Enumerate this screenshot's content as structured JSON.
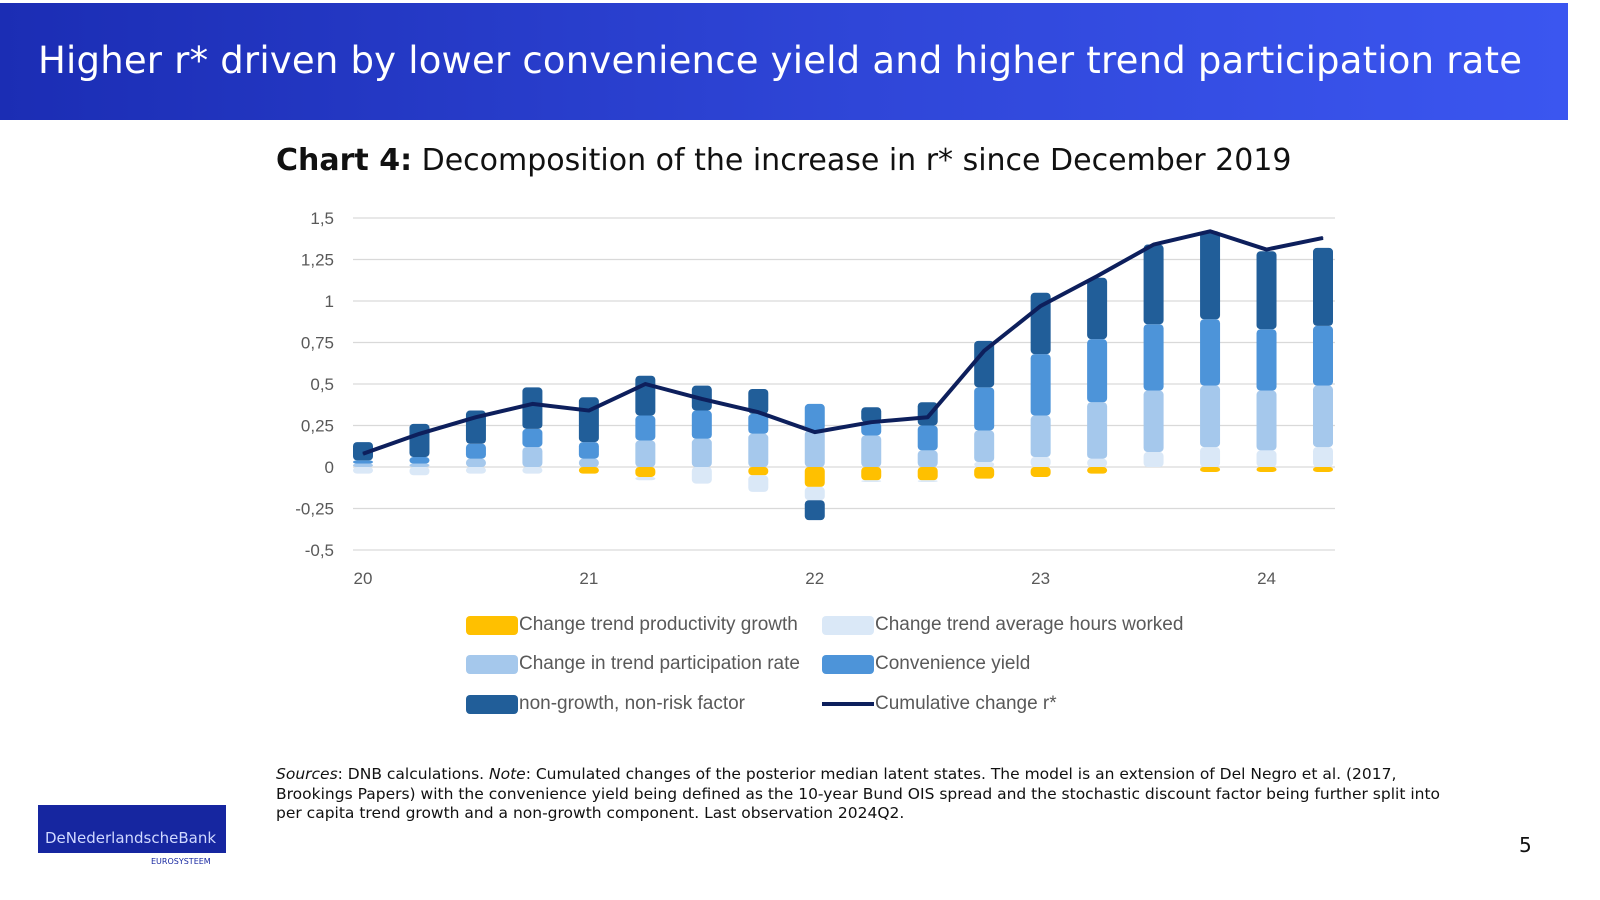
{
  "slide": {
    "title": "Higher r* driven by lower convenience yield and higher trend participation rate",
    "chart_label": "Chart 4:",
    "chart_title": "Decomposition of the increase in r* since December 2019",
    "note_sources_label": "Sources",
    "note_sources_text": ": DNB calculations. ",
    "note_note_label": "Note",
    "note_text": ": Cumulated changes of the posterior median latent states. The model is an extension of Del Negro et al. (2017, Brookings Papers) with the convenience yield being defined as the 10-year Bund OIS spread and the stochastic discount factor being further split into per capita trend growth and a non-growth component. Last observation 2024Q2.",
    "logo_text": "DeNederlandscheBank",
    "logo_subtext": "EUROSYSTEEM",
    "page_number": "5"
  },
  "chart_data": {
    "type": "bar",
    "stacked": true,
    "title": "Decomposition of the increase in r* since December 2019",
    "xlabel": "",
    "ylabel": "",
    "ylim": [
      -0.5,
      1.5
    ],
    "yticks": [
      -0.5,
      -0.25,
      0,
      0.25,
      0.5,
      0.75,
      1,
      1.25,
      1.5
    ],
    "ytick_labels": [
      "-0,5",
      "-0,25",
      "0",
      "0,25",
      "0,5",
      "0,75",
      "1",
      "1,25",
      "1,5"
    ],
    "xtick_labels": [
      {
        "index": 0,
        "label": "20"
      },
      {
        "index": 4,
        "label": "21"
      },
      {
        "index": 8,
        "label": "22"
      },
      {
        "index": 12,
        "label": "23"
      },
      {
        "index": 16,
        "label": "24"
      }
    ],
    "grid": true,
    "legend_position": "bottom",
    "categories": [
      "2020Q1",
      "2020Q2",
      "2020Q3",
      "2020Q4",
      "2021Q1",
      "2021Q2",
      "2021Q3",
      "2021Q4",
      "2022Q1",
      "2022Q2",
      "2022Q3",
      "2022Q4",
      "2023Q1",
      "2023Q2",
      "2023Q3",
      "2023Q4",
      "2024Q1",
      "2024Q2"
    ],
    "series": [
      {
        "name": "Change trend productivity growth",
        "color": "#ffc000",
        "kind": "bar",
        "values": [
          0,
          0,
          0,
          0,
          -0.04,
          -0.06,
          0,
          -0.05,
          -0.12,
          -0.08,
          -0.08,
          -0.07,
          -0.06,
          -0.04,
          0,
          -0.03,
          -0.03,
          -0.03
        ]
      },
      {
        "name": "Change trend average hours worked",
        "color": "#dae8f7",
        "kind": "bar",
        "values": [
          -0.04,
          -0.05,
          -0.04,
          -0.04,
          0,
          -0.02,
          -0.1,
          -0.1,
          -0.08,
          -0.01,
          -0.01,
          0.03,
          0.06,
          0.05,
          0.09,
          0.12,
          0.1,
          0.12
        ]
      },
      {
        "name": "Change in trend participation rate",
        "color": "#a5c8ec",
        "kind": "bar",
        "values": [
          0.02,
          0.02,
          0.05,
          0.12,
          0.05,
          0.16,
          0.17,
          0.2,
          0.22,
          0.19,
          0.1,
          0.19,
          0.25,
          0.34,
          0.37,
          0.37,
          0.36,
          0.37
        ]
      },
      {
        "name": "Convenience yield",
        "color": "#4d94d9",
        "kind": "bar",
        "values": [
          0.02,
          0.04,
          0.09,
          0.11,
          0.1,
          0.15,
          0.17,
          0.12,
          0.16,
          0.08,
          0.15,
          0.26,
          0.37,
          0.38,
          0.4,
          0.4,
          0.37,
          0.36
        ]
      },
      {
        "name": "non-growth, non-risk factor",
        "color": "#215e99",
        "kind": "bar",
        "values": [
          0.11,
          0.2,
          0.2,
          0.25,
          0.27,
          0.24,
          0.15,
          0.15,
          -0.12,
          0.09,
          0.14,
          0.28,
          0.37,
          0.37,
          0.48,
          0.53,
          0.47,
          0.47
        ]
      },
      {
        "name": "Cumulative change r*",
        "color": "#0d1f5c",
        "kind": "line",
        "values": [
          0.08,
          0.2,
          0.3,
          0.38,
          0.34,
          0.5,
          0.41,
          0.33,
          0.21,
          0.27,
          0.3,
          0.7,
          0.97,
          1.15,
          1.34,
          1.42,
          1.31,
          1.38
        ]
      }
    ]
  },
  "legend": [
    {
      "label": "Change trend productivity growth",
      "color": "#ffc000",
      "kind": "bar"
    },
    {
      "label": "Change trend average hours worked",
      "color": "#dae8f7",
      "kind": "bar"
    },
    {
      "label": "Change in trend participation rate",
      "color": "#a5c8ec",
      "kind": "bar"
    },
    {
      "label": "Convenience yield",
      "color": "#4d94d9",
      "kind": "bar"
    },
    {
      "label": "non-growth, non-risk factor",
      "color": "#215e99",
      "kind": "bar"
    },
    {
      "label": "Cumulative change r*",
      "color": "#0d1f5c",
      "kind": "line"
    }
  ]
}
